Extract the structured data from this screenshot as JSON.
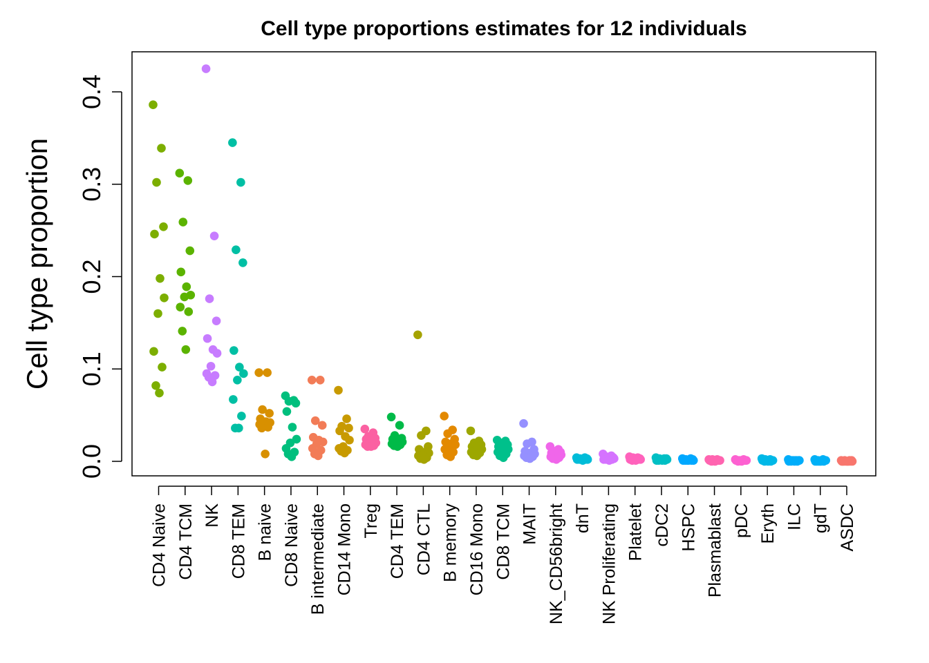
{
  "chart_data": {
    "type": "scatter",
    "title": "Cell type proportions estimates for 12 individuals",
    "xlabel": "",
    "ylabel": "Cell type proportion",
    "ylim": [
      -0.015,
      0.44
    ],
    "yticks": [
      0.0,
      0.1,
      0.2,
      0.3,
      0.4
    ],
    "ytick_labels": [
      "0.0",
      "0.1",
      "0.2",
      "0.3",
      "0.4"
    ],
    "grid": false,
    "legend": "none",
    "categories": [
      "CD4 Naive",
      "CD4 TCM",
      "NK",
      "CD8 TEM",
      "B naive",
      "CD8 Naive",
      "B intermediate",
      "CD14 Mono",
      "Treg",
      "CD4 TEM",
      "CD4 CTL",
      "B memory",
      "CD16 Mono",
      "CD8 TCM",
      "MAIT",
      "NK_CD56bright",
      "dnT",
      "NK Proliferating",
      "Platelet",
      "cDC2",
      "HSPC",
      "Plasmablast",
      "pDC",
      "Eryth",
      "ILC",
      "gdT",
      "ASDC"
    ],
    "colors": [
      "#7CAE00",
      "#5BB300",
      "#C77CFF",
      "#00BFA4",
      "#D89000",
      "#00BF7D",
      "#F27C57",
      "#C89A00",
      "#FB61A2",
      "#00BA48",
      "#A5A300",
      "#E38900",
      "#9CA700",
      "#00C08B",
      "#9590FF",
      "#F066EA",
      "#00BCD8",
      "#D573FF",
      "#FF62BC",
      "#00BFC4",
      "#00A8FF",
      "#FF64B0",
      "#FD61D1",
      "#00B8E7",
      "#00ADFA",
      "#00B0F6",
      "#F8766D"
    ],
    "series": [
      {
        "values": [
          0.386,
          0.339,
          0.302,
          0.254,
          0.246,
          0.198,
          0.177,
          0.16,
          0.119,
          0.102,
          0.082,
          0.074
        ]
      },
      {
        "values": [
          0.312,
          0.304,
          0.259,
          0.228,
          0.205,
          0.189,
          0.18,
          0.178,
          0.167,
          0.162,
          0.141,
          0.121
        ]
      },
      {
        "values": [
          0.425,
          0.244,
          0.176,
          0.152,
          0.133,
          0.121,
          0.117,
          0.103,
          0.095,
          0.093,
          0.091,
          0.086
        ]
      },
      {
        "values": [
          0.345,
          0.302,
          0.229,
          0.215,
          0.12,
          0.102,
          0.095,
          0.088,
          0.067,
          0.049,
          0.036,
          0.036
        ]
      },
      {
        "values": [
          0.096,
          0.096,
          0.056,
          0.052,
          0.046,
          0.043,
          0.042,
          0.041,
          0.04,
          0.037,
          0.036,
          0.008
        ]
      },
      {
        "values": [
          0.071,
          0.066,
          0.065,
          0.063,
          0.054,
          0.037,
          0.024,
          0.02,
          0.014,
          0.01,
          0.008,
          0.005
        ]
      },
      {
        "values": [
          0.088,
          0.088,
          0.044,
          0.039,
          0.026,
          0.023,
          0.021,
          0.019,
          0.014,
          0.012,
          0.008,
          0.006
        ]
      },
      {
        "values": [
          0.077,
          0.046,
          0.038,
          0.036,
          0.033,
          0.027,
          0.023,
          0.016,
          0.014,
          0.012,
          0.011,
          0.009
        ]
      },
      {
        "values": [
          0.035,
          0.031,
          0.027,
          0.025,
          0.024,
          0.022,
          0.02,
          0.019,
          0.018,
          0.017,
          0.016,
          0.016
        ]
      },
      {
        "values": [
          0.048,
          0.039,
          0.028,
          0.025,
          0.024,
          0.022,
          0.021,
          0.02,
          0.019,
          0.018,
          0.017,
          0.016
        ]
      },
      {
        "values": [
          0.137,
          0.033,
          0.028,
          0.016,
          0.013,
          0.01,
          0.009,
          0.007,
          0.006,
          0.004,
          0.003,
          0.002
        ]
      },
      {
        "values": [
          0.049,
          0.034,
          0.03,
          0.024,
          0.021,
          0.019,
          0.018,
          0.015,
          0.013,
          0.01,
          0.007,
          0.005
        ]
      },
      {
        "values": [
          0.033,
          0.022,
          0.02,
          0.018,
          0.016,
          0.015,
          0.013,
          0.012,
          0.01,
          0.009,
          0.007,
          0.006
        ]
      },
      {
        "values": [
          0.023,
          0.022,
          0.02,
          0.018,
          0.016,
          0.015,
          0.013,
          0.012,
          0.01,
          0.008,
          0.006,
          0.004
        ]
      },
      {
        "values": [
          0.041,
          0.021,
          0.019,
          0.013,
          0.011,
          0.009,
          0.008,
          0.007,
          0.006,
          0.005,
          0.004,
          0.003
        ]
      },
      {
        "values": [
          0.016,
          0.013,
          0.011,
          0.01,
          0.009,
          0.008,
          0.007,
          0.006,
          0.005,
          0.004,
          0.003,
          0.002
        ]
      },
      {
        "values": [
          0.004,
          0.004,
          0.003,
          0.003,
          0.003,
          0.003,
          0.002,
          0.002,
          0.002,
          0.002,
          0.002,
          0.001
        ]
      },
      {
        "values": [
          0.008,
          0.006,
          0.005,
          0.004,
          0.004,
          0.003,
          0.003,
          0.003,
          0.002,
          0.002,
          0.002,
          0.001
        ]
      },
      {
        "values": [
          0.005,
          0.004,
          0.004,
          0.003,
          0.003,
          0.003,
          0.002,
          0.002,
          0.002,
          0.002,
          0.001,
          0.001
        ]
      },
      {
        "values": [
          0.004,
          0.003,
          0.003,
          0.003,
          0.002,
          0.002,
          0.002,
          0.002,
          0.001,
          0.001,
          0.001,
          0.001
        ]
      },
      {
        "values": [
          0.003,
          0.003,
          0.002,
          0.002,
          0.002,
          0.002,
          0.001,
          0.001,
          0.001,
          0.001,
          0.001,
          0.001
        ]
      },
      {
        "values": [
          0.002,
          0.002,
          0.002,
          0.001,
          0.001,
          0.001,
          0.001,
          0.001,
          0.001,
          0.001,
          0.0,
          0.0
        ]
      },
      {
        "values": [
          0.002,
          0.002,
          0.001,
          0.001,
          0.001,
          0.001,
          0.001,
          0.001,
          0.001,
          0.001,
          0.0,
          0.0
        ]
      },
      {
        "values": [
          0.003,
          0.002,
          0.002,
          0.001,
          0.001,
          0.001,
          0.001,
          0.001,
          0.001,
          0.0,
          0.0,
          0.0
        ]
      },
      {
        "values": [
          0.002,
          0.001,
          0.001,
          0.001,
          0.001,
          0.001,
          0.001,
          0.001,
          0.0,
          0.0,
          0.0,
          0.0
        ]
      },
      {
        "values": [
          0.002,
          0.002,
          0.001,
          0.001,
          0.001,
          0.001,
          0.001,
          0.0,
          0.0,
          0.0,
          0.0,
          0.0
        ]
      },
      {
        "values": [
          0.001,
          0.001,
          0.001,
          0.001,
          0.0,
          0.0,
          0.0,
          0.0,
          0.0,
          0.0,
          0.0,
          0.0
        ]
      }
    ]
  }
}
